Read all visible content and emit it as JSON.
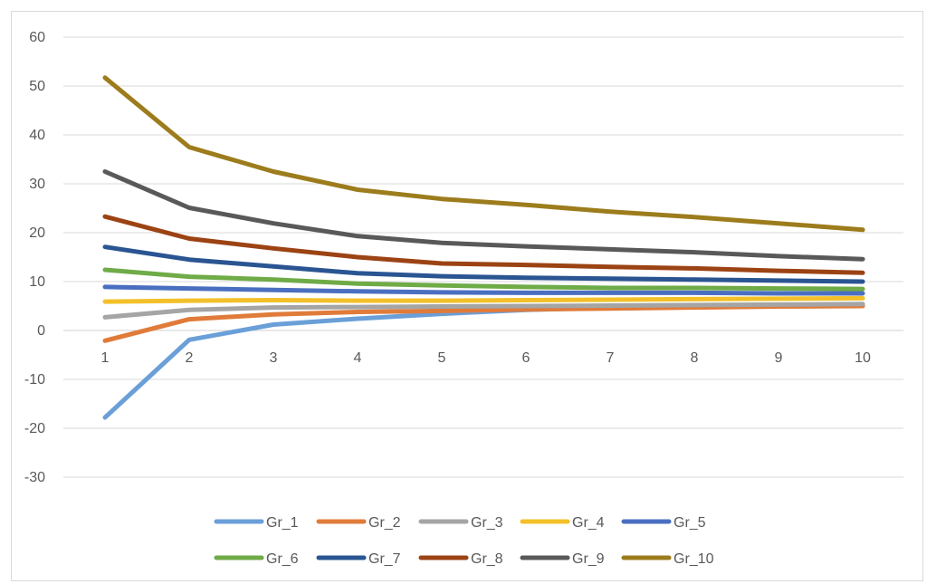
{
  "chart_data": {
    "type": "line",
    "title": "",
    "xlabel": "",
    "ylabel": "",
    "categories": [
      "1",
      "2",
      "3",
      "4",
      "5",
      "6",
      "7",
      "8",
      "9",
      "10"
    ],
    "ylim": [
      -30,
      60
    ],
    "yticks": [
      "60",
      "50",
      "40",
      "30",
      "20",
      "10",
      "0",
      "-10",
      "-20",
      "-30"
    ],
    "grid": true,
    "legend_position": "bottom",
    "series": [
      {
        "name": "Gr_1",
        "color": "#6a9fd8",
        "values": [
          -17.8,
          -1.9,
          1.2,
          2.4,
          3.4,
          4.2,
          4.7,
          5.0,
          5.1,
          5.2
        ]
      },
      {
        "name": "Gr_2",
        "color": "#e07b3a",
        "values": [
          -2.1,
          2.3,
          3.3,
          3.8,
          4.0,
          4.3,
          4.5,
          4.7,
          4.9,
          5.0
        ]
      },
      {
        "name": "Gr_3",
        "color": "#a5a5a5",
        "values": [
          2.7,
          4.2,
          4.7,
          4.8,
          4.9,
          5.0,
          5.1,
          5.2,
          5.3,
          5.4
        ]
      },
      {
        "name": "Gr_4",
        "color": "#f3c02a",
        "values": [
          5.9,
          6.1,
          6.2,
          6.1,
          6.1,
          6.2,
          6.3,
          6.4,
          6.5,
          6.6
        ]
      },
      {
        "name": "Gr_5",
        "color": "#4a6fc0",
        "values": [
          8.9,
          8.6,
          8.3,
          8.0,
          7.8,
          7.7,
          7.7,
          7.7,
          7.6,
          7.6
        ]
      },
      {
        "name": "Gr_6",
        "color": "#6fab47",
        "values": [
          12.4,
          11.0,
          10.4,
          9.6,
          9.2,
          8.9,
          8.7,
          8.7,
          8.6,
          8.5
        ]
      },
      {
        "name": "Gr_7",
        "color": "#2a5592",
        "values": [
          17.1,
          14.5,
          13.1,
          11.7,
          11.1,
          10.8,
          10.6,
          10.4,
          10.2,
          10.0
        ]
      },
      {
        "name": "Gr_8",
        "color": "#9c4314",
        "values": [
          23.3,
          18.8,
          16.8,
          15.0,
          13.7,
          13.4,
          13.0,
          12.7,
          12.2,
          11.8
        ]
      },
      {
        "name": "Gr_9",
        "color": "#595959",
        "values": [
          32.5,
          25.1,
          21.9,
          19.3,
          17.9,
          17.2,
          16.6,
          16.0,
          15.2,
          14.6
        ]
      },
      {
        "name": "Gr_10",
        "color": "#9c7c1c",
        "values": [
          51.7,
          37.5,
          32.5,
          28.8,
          26.9,
          25.7,
          24.3,
          23.2,
          21.9,
          20.6
        ]
      }
    ]
  }
}
